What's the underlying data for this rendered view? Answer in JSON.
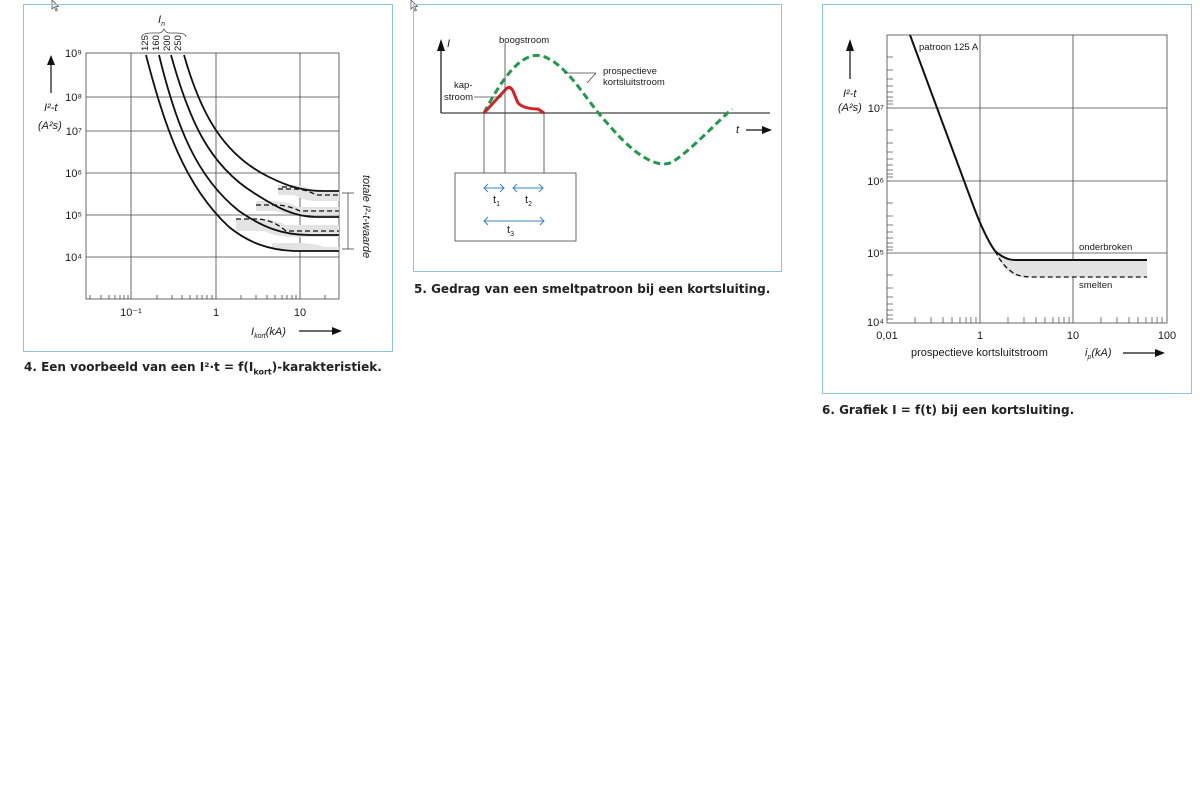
{
  "fig4": {
    "caption_pre": "4. Een voorbeeld van een I²·t = f(I",
    "caption_sub": "kort",
    "caption_post": ")-karakteristiek.",
    "ylabel_top": "I²-t",
    "ylabel_bottom": "(A²s)",
    "yticks": [
      "10⁹",
      "10⁸",
      "10⁷",
      "10⁶",
      "10⁵",
      "10⁴"
    ],
    "xticks": [
      "10⁻¹",
      "1",
      "10"
    ],
    "xlabel_main": "I",
    "xlabel_sub": "kort",
    "xlabel_unit": "(kA)",
    "in_label": "I",
    "in_sub": "n",
    "ratings": [
      "125",
      "160",
      "200",
      "250"
    ],
    "side_label": "totale I²-t-waarde",
    "chart_data": {
      "type": "line",
      "xscale": "log",
      "yscale": "log",
      "xlim_kA": [
        0.03,
        40
      ],
      "ylim_A2s": [
        3000,
        1000000000
      ],
      "series": [
        {
          "name": "125",
          "x": [
            0.14,
            0.2,
            0.35,
            0.7,
            1.5,
            3,
            5,
            10,
            40
          ],
          "y": [
            700000000,
            60000000,
            4000000,
            400000,
            60000,
            22000,
            16000,
            15000,
            15000
          ]
        },
        {
          "name": "160",
          "x": [
            0.2,
            0.3,
            0.5,
            1,
            2,
            4,
            7,
            15,
            40
          ],
          "y": [
            700000000,
            60000000,
            6000000,
            600000,
            110000,
            45000,
            35000,
            34000,
            34000
          ]
        },
        {
          "name": "200",
          "x": [
            0.27,
            0.4,
            0.7,
            1.4,
            3,
            5,
            9,
            20,
            40
          ],
          "y": [
            700000000,
            70000000,
            6000000,
            700000,
            130000,
            80000,
            70000,
            68000,
            68000
          ]
        },
        {
          "name": "250",
          "x": [
            0.35,
            0.5,
            0.9,
            2,
            4,
            6,
            10,
            20,
            40
          ],
          "y": [
            700000000,
            90000000,
            8000000,
            800000,
            230000,
            170000,
            160000,
            160000,
            160000
          ]
        }
      ]
    }
  },
  "fig5": {
    "caption": "5. Gedrag van een smeltpatroon bij een kortsluiting.",
    "ylabel": "I",
    "xlabel": "t",
    "boogstroom": "boogstroom",
    "prosp_1": "prospectieve",
    "prosp_2": "kortsluitstroom",
    "kap_1": "kap-",
    "kap_2": "stroom",
    "t1": "t",
    "t1_sub": "1",
    "t2": "t",
    "t2_sub": "2",
    "t3": "t",
    "t3_sub": "3",
    "colors": {
      "prospective": "#1f9a4a",
      "cut_off": "#d42027",
      "arrows": "#3a84c4"
    }
  },
  "fig6": {
    "caption": "6. Grafiek I = f(t) bij een kortsluiting.",
    "ylabel_top": "I²-t",
    "ylabel_bottom": "(A²s)",
    "yticks": [
      "10⁷",
      "10⁶",
      "10⁵",
      "10⁴"
    ],
    "xticks": [
      "0,01",
      "1",
      "10",
      "100"
    ],
    "xlabel": "prospectieve kortsluitstroom",
    "xunit_main": "i",
    "xunit_sub": "p",
    "xunit_tail": "(kA)",
    "patroon": "patroon 125 A",
    "onderbroken": "onderbroken",
    "smelten": "smelten",
    "chart_data": {
      "type": "line",
      "xscale": "log",
      "yscale": "log",
      "xlim_kA": [
        0.1,
        100
      ],
      "ylim_A2s": [
        10000,
        100000000
      ],
      "series": [
        {
          "name": "onderbroken",
          "x": [
            0.2,
            0.5,
            1,
            1.5,
            2,
            5,
            10,
            70
          ],
          "y": [
            100000000,
            3000000,
            250000,
            100000,
            80000,
            80000,
            80000,
            80000
          ]
        },
        {
          "name": "smelten",
          "x": [
            1.5,
            2,
            3,
            10,
            70
          ],
          "y": [
            100000,
            60000,
            50000,
            48000,
            48000
          ]
        }
      ]
    }
  }
}
